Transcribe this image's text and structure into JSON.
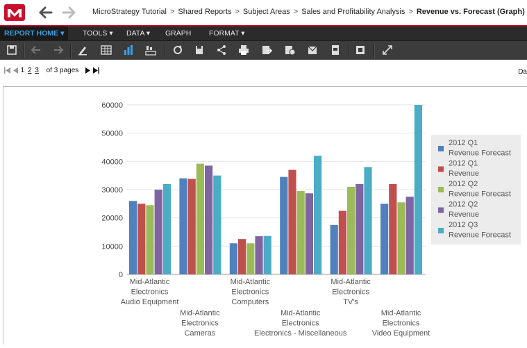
{
  "window": {
    "logo": "M",
    "back_icon": "back-arrow-icon",
    "forward_icon": "forward-arrow-icon"
  },
  "breadcrumb": {
    "items": [
      "MicroStrategy Tutorial",
      "Shared Reports",
      "Subject Areas",
      "Sales and Profitability Analysis"
    ],
    "separator": ">",
    "current": "Revenue vs. Forecast (Graph)"
  },
  "menu": {
    "report_home": "REPORT HOME",
    "tools": "TOOLS",
    "data": "DATA",
    "graph": "GRAPH",
    "format": "FORMAT"
  },
  "toolbar": {
    "icons": [
      "save-icon",
      "undo-icon",
      "redo-icon",
      "design-mode-icon",
      "grid-view-icon",
      "graph-view-icon",
      "grid-graph-view-icon",
      "refresh-icon",
      "save-as-icon",
      "share-icon",
      "print-icon",
      "export-icon",
      "subscribe-icon",
      "email-icon",
      "export-pdf-icon",
      "options-icon",
      "fullscreen-icon"
    ]
  },
  "pager": {
    "pages": [
      "1",
      "2",
      "3"
    ],
    "current": "1",
    "total_label": "of 3 pages"
  },
  "right_label": "Da",
  "colors": {
    "series": [
      "#4f81bd",
      "#c0504d",
      "#9bbb59",
      "#8064a2",
      "#4bacc6"
    ],
    "brand": "#c8102e",
    "menu_bg": "#2b2b2b",
    "toolbar_bg": "#3c3c3c",
    "menu_active": "#3aa0e6"
  },
  "chart_data": {
    "type": "bar",
    "categories": [
      [
        "Mid-Atlantic",
        "Electronics",
        "Audio Equipment"
      ],
      [
        "Mid-Atlantic",
        "Electronics",
        "Cameras"
      ],
      [
        "Mid-Atlantic",
        "Electronics",
        "Computers"
      ],
      [
        "Mid-Atlantic",
        "Electronics",
        "Electronics - Miscellaneous"
      ],
      [
        "Mid-Atlantic",
        "Electronics",
        "TV's"
      ],
      [
        "Mid-Atlantic",
        "Electronics",
        "Video Equipment"
      ]
    ],
    "series": [
      {
        "name": [
          "2012 Q1",
          "Revenue Forecast"
        ],
        "values": [
          26000,
          34000,
          11000,
          34500,
          17500,
          25000
        ]
      },
      {
        "name": [
          "2012 Q1",
          "Revenue"
        ],
        "values": [
          25000,
          33800,
          12500,
          37000,
          22500,
          32000
        ]
      },
      {
        "name": [
          "2012 Q2",
          "Revenue Forecast"
        ],
        "values": [
          24500,
          39200,
          11000,
          29500,
          31000,
          25500
        ]
      },
      {
        "name": [
          "2012 Q2",
          "Revenue"
        ],
        "values": [
          30000,
          38500,
          13500,
          28700,
          32000,
          27500
        ]
      },
      {
        "name": [
          "2012 Q3",
          "Revenue Forecast"
        ],
        "values": [
          32000,
          35000,
          13600,
          42000,
          38000,
          60000
        ]
      }
    ],
    "y_ticks": [
      "60000",
      "50000",
      "40000",
      "30000",
      "20000",
      "10000",
      "0"
    ],
    "ylim": [
      0,
      60000
    ],
    "legend": "right",
    "grid": true,
    "title": "",
    "xlabel": "",
    "ylabel": ""
  }
}
